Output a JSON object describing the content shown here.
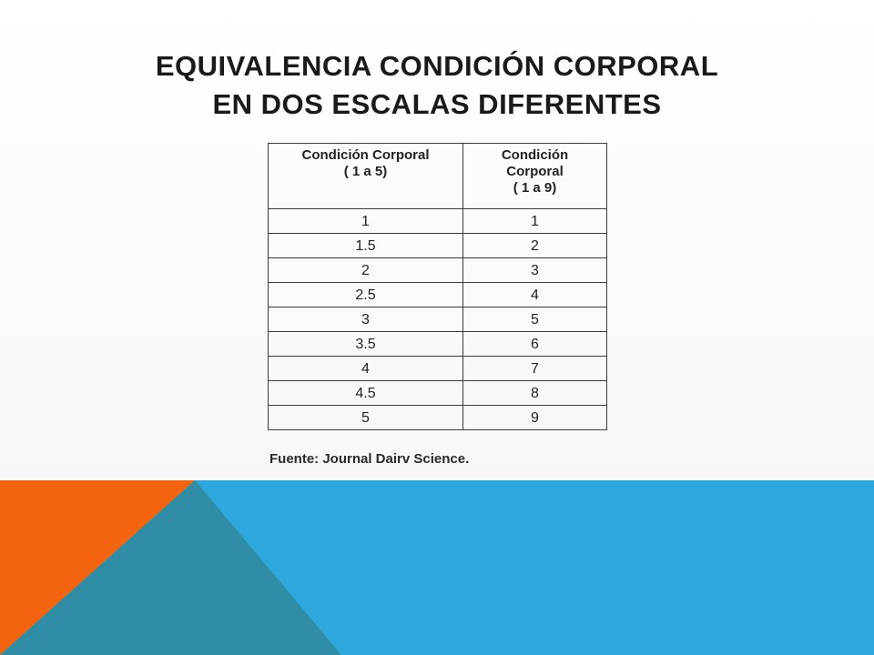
{
  "title": {
    "line1": "EQUIVALENCIA CONDICIÓN CORPORAL",
    "line2": "EN DOS ESCALAS DIFERENTES"
  },
  "table": {
    "headers": [
      [
        "Condición Corporal",
        "( 1 a 5)"
      ],
      [
        "Condición",
        "Corporal",
        "( 1 a 9)"
      ]
    ],
    "rows": [
      [
        "1",
        "1"
      ],
      [
        "1.5",
        "2"
      ],
      [
        "2",
        "3"
      ],
      [
        "2.5",
        "4"
      ],
      [
        "3",
        "5"
      ],
      [
        "3.5",
        "6"
      ],
      [
        "4",
        "7"
      ],
      [
        "4.5",
        "8"
      ],
      [
        "5",
        "9"
      ]
    ]
  },
  "source": "Fuente: Journal Dairv Science.",
  "colors": {
    "orange": "#f4630d",
    "teal": "#2f8ea6",
    "blue": "#2ea8dc"
  }
}
